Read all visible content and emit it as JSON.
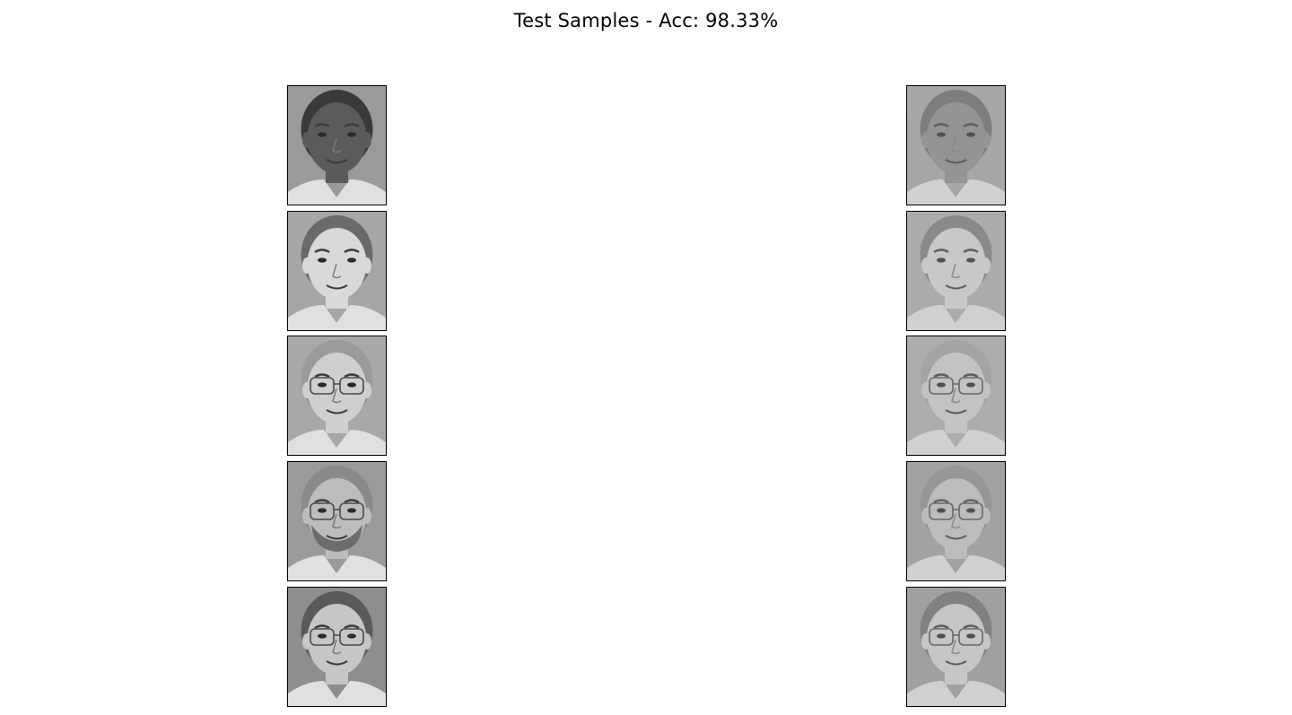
{
  "figure": {
    "title": "Test Samples - Acc: 98.33%"
  },
  "columns": [
    {
      "role": "original",
      "faces": [
        {
          "icon": "dark-skin-man-face-icon",
          "skin": "#5b5b5b",
          "hair": "#3a3a3a",
          "bg": "#9a9a9a",
          "glasses": false,
          "beard": false
        },
        {
          "icon": "young-man-face-icon",
          "skin": "#d9d9d9",
          "hair": "#6a6a6a",
          "bg": "#a6a6a6",
          "glasses": false,
          "beard": false
        },
        {
          "icon": "balding-man-glasses-face-icon",
          "skin": "#cfcfcf",
          "hair": "#9a9a9a",
          "bg": "#a8a8a8",
          "glasses": true,
          "beard": false
        },
        {
          "icon": "bearded-man-glasses-face-icon",
          "skin": "#bdbdbd",
          "hair": "#8a8a8a",
          "bg": "#9a9a9a",
          "glasses": true,
          "beard": true
        },
        {
          "icon": "man-glasses-face-icon",
          "skin": "#c6c6c6",
          "hair": "#5a5a5a",
          "bg": "#8e8e8e",
          "glasses": true,
          "beard": false
        }
      ]
    },
    {
      "role": "reconstruction",
      "faces": [
        {
          "icon": "reconstructed-face-icon",
          "skin": "#8a8a8a",
          "hair": "#6a6a6a",
          "bg": "#a4a4a4",
          "glasses": false,
          "beard": false
        },
        {
          "icon": "reconstructed-face-icon",
          "skin": "#d4d4d4",
          "hair": "#7a7a7a",
          "bg": "#ababab",
          "glasses": false,
          "beard": false
        },
        {
          "icon": "reconstructed-glasses-face-icon",
          "skin": "#cdcdcd",
          "hair": "#a0a0a0",
          "bg": "#adadad",
          "glasses": true,
          "beard": false
        },
        {
          "icon": "reconstructed-glasses-face-icon",
          "skin": "#c2c2c2",
          "hair": "#8c8c8c",
          "bg": "#9e9e9e",
          "glasses": true,
          "beard": false
        },
        {
          "icon": "reconstructed-glasses-face-icon",
          "skin": "#d0d0d0",
          "hair": "#6f6f6f",
          "bg": "#9a9a9a",
          "glasses": true,
          "beard": false
        }
      ]
    }
  ]
}
